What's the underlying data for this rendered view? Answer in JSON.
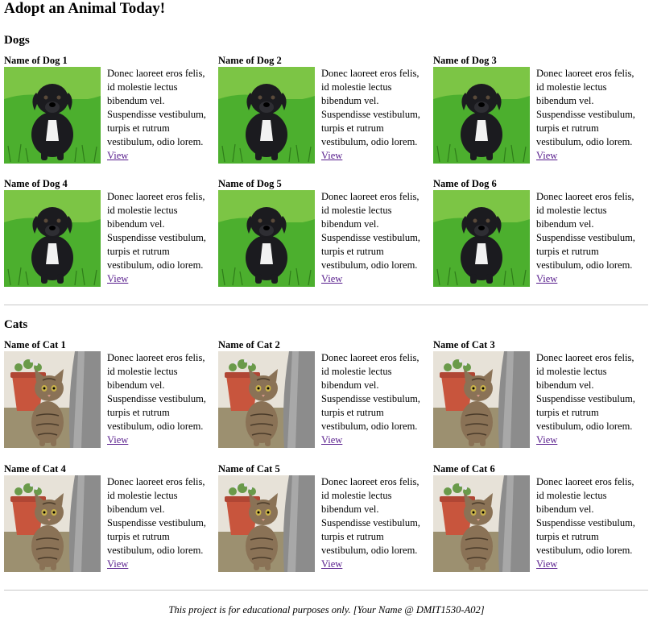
{
  "page": {
    "title": "Adopt an Animal Today!"
  },
  "dogs": {
    "heading": "Dogs",
    "items": [
      {
        "name": "Name of Dog 1",
        "description": "Donec laoreet eros felis, id molestie lectus bibendum vel. Suspendisse vestibulum, turpis et rutrum vestibulum, odio lorem.",
        "link": "View"
      },
      {
        "name": "Name of Dog 2",
        "description": "Donec laoreet eros felis, id molestie lectus bibendum vel. Suspendisse vestibulum, turpis et rutrum vestibulum, odio lorem.",
        "link": "View"
      },
      {
        "name": "Name of Dog 3",
        "description": "Donec laoreet eros felis, id molestie lectus bibendum vel. Suspendisse vestibulum, turpis et rutrum vestibulum, odio lorem.",
        "link": "View"
      },
      {
        "name": "Name of Dog 4",
        "description": "Donec laoreet eros felis, id molestie lectus bibendum vel. Suspendisse vestibulum, turpis et rutrum vestibulum, odio lorem.",
        "link": "View"
      },
      {
        "name": "Name of Dog 5",
        "description": "Donec laoreet eros felis, id molestie lectus bibendum vel. Suspendisse vestibulum, turpis et rutrum vestibulum, odio lorem.",
        "link": "View"
      },
      {
        "name": "Name of Dog 6",
        "description": "Donec laoreet eros felis, id molestie lectus bibendum vel. Suspendisse vestibulum, turpis et rutrum vestibulum, odio lorem.",
        "link": "View"
      }
    ]
  },
  "cats": {
    "heading": "Cats",
    "items": [
      {
        "name": "Name of Cat 1",
        "description": "Donec laoreet eros felis, id molestie lectus bibendum vel. Suspendisse vestibulum, turpis et rutrum vestibulum, odio lorem.",
        "link": "View"
      },
      {
        "name": "Name of Cat 2",
        "description": "Donec laoreet eros felis, id molestie lectus bibendum vel. Suspendisse vestibulum, turpis et rutrum vestibulum, odio lorem.",
        "link": "View"
      },
      {
        "name": "Name of Cat 3",
        "description": "Donec laoreet eros felis, id molestie lectus bibendum vel. Suspendisse vestibulum, turpis et rutrum vestibulum, odio lorem.",
        "link": "View"
      },
      {
        "name": "Name of Cat 4",
        "description": "Donec laoreet eros felis, id molestie lectus bibendum vel. Suspendisse vestibulum, turpis et rutrum vestibulum, odio lorem.",
        "link": "View"
      },
      {
        "name": "Name of Cat 5",
        "description": "Donec laoreet eros felis, id molestie lectus bibendum vel. Suspendisse vestibulum, turpis et rutrum vestibulum, odio lorem.",
        "link": "View"
      },
      {
        "name": "Name of Cat 6",
        "description": "Donec laoreet eros felis, id molestie lectus bibendum vel. Suspendisse vestibulum, turpis et rutrum vestibulum, odio lorem.",
        "link": "View"
      }
    ]
  },
  "footer": {
    "text": "This project is for educational purposes only. [Your Name @ DMIT1530-A02]"
  },
  "colors": {
    "link": "#551a8b",
    "divider": "#c8c8c8",
    "grass": "#4caf2e",
    "dog": "#1b1b1f",
    "cat_fur": "#8a7256",
    "flower_pot": "#c8553d",
    "wall": "#8c8c8c"
  }
}
